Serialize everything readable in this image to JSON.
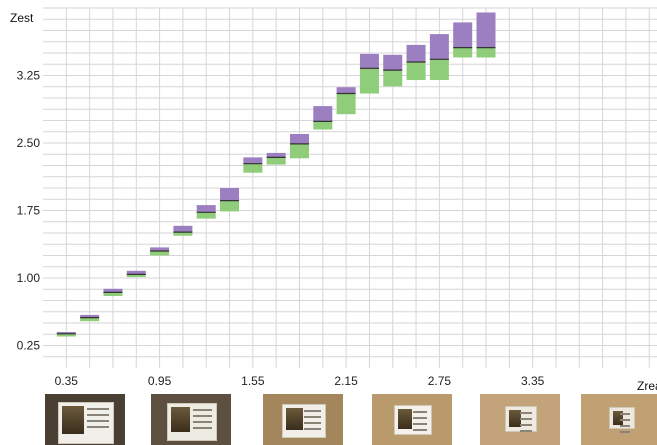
{
  "chart_data": {
    "type": "box",
    "xlabel": "Zreal",
    "ylabel": "Zest",
    "x_ticks": [
      "0.35",
      "0.95",
      "1.55",
      "2.15",
      "2.75",
      "3.35"
    ],
    "y_ticks": [
      "0.25",
      "1.00",
      "1.75",
      "2.50",
      "3.25"
    ],
    "xlim": [
      0.2,
      4.15
    ],
    "ylim": [
      0.0,
      4.0
    ],
    "grid": true,
    "colors": {
      "upper": "#9b7fc0",
      "lower": "#8fcd7a",
      "median": "#333333",
      "grid": "#d6d6d6"
    },
    "boxes": [
      {
        "x": 0.35,
        "low": 0.35,
        "median": 0.38,
        "high": 0.4
      },
      {
        "x": 0.5,
        "low": 0.52,
        "median": 0.56,
        "high": 0.59
      },
      {
        "x": 0.65,
        "low": 0.8,
        "median": 0.84,
        "high": 0.88
      },
      {
        "x": 0.8,
        "low": 1.01,
        "median": 1.04,
        "high": 1.08
      },
      {
        "x": 0.95,
        "low": 1.25,
        "median": 1.3,
        "high": 1.34
      },
      {
        "x": 1.1,
        "low": 1.47,
        "median": 1.51,
        "high": 1.58
      },
      {
        "x": 1.25,
        "low": 1.66,
        "median": 1.73,
        "high": 1.81
      },
      {
        "x": 1.4,
        "low": 1.74,
        "median": 1.86,
        "high": 2.0
      },
      {
        "x": 1.55,
        "low": 2.17,
        "median": 2.27,
        "high": 2.34
      },
      {
        "x": 1.7,
        "low": 2.26,
        "median": 2.34,
        "high": 2.39
      },
      {
        "x": 1.85,
        "low": 2.33,
        "median": 2.49,
        "high": 2.6
      },
      {
        "x": 2.0,
        "low": 2.65,
        "median": 2.74,
        "high": 2.91
      },
      {
        "x": 2.15,
        "low": 2.82,
        "median": 3.05,
        "high": 3.12
      },
      {
        "x": 2.3,
        "low": 3.05,
        "median": 3.33,
        "high": 3.49
      },
      {
        "x": 2.45,
        "low": 3.13,
        "median": 3.31,
        "high": 3.48
      },
      {
        "x": 2.6,
        "low": 3.2,
        "median": 3.4,
        "high": 3.59
      },
      {
        "x": 2.75,
        "low": 3.2,
        "median": 3.43,
        "high": 3.71
      },
      {
        "x": 2.9,
        "low": 3.45,
        "median": 3.56,
        "high": 3.84
      },
      {
        "x": 3.05,
        "low": 3.45,
        "median": 3.56,
        "high": 3.95
      }
    ]
  },
  "thumbnails": [
    {
      "name": "thumb-1",
      "wall": "#4a3f33",
      "poster": "#f1efe9"
    },
    {
      "name": "thumb-2",
      "wall": "#5d5040",
      "poster": "#eeebe3"
    },
    {
      "name": "thumb-3",
      "wall": "#a4865d",
      "poster": "#f2efe8"
    },
    {
      "name": "thumb-4",
      "wall": "#b99a6c",
      "poster": "#f3f1ea"
    },
    {
      "name": "thumb-5",
      "wall": "#c2a37a",
      "poster": "#eeeae2"
    },
    {
      "name": "thumb-6",
      "wall": "#c1a173",
      "poster": "#ece8de"
    }
  ]
}
